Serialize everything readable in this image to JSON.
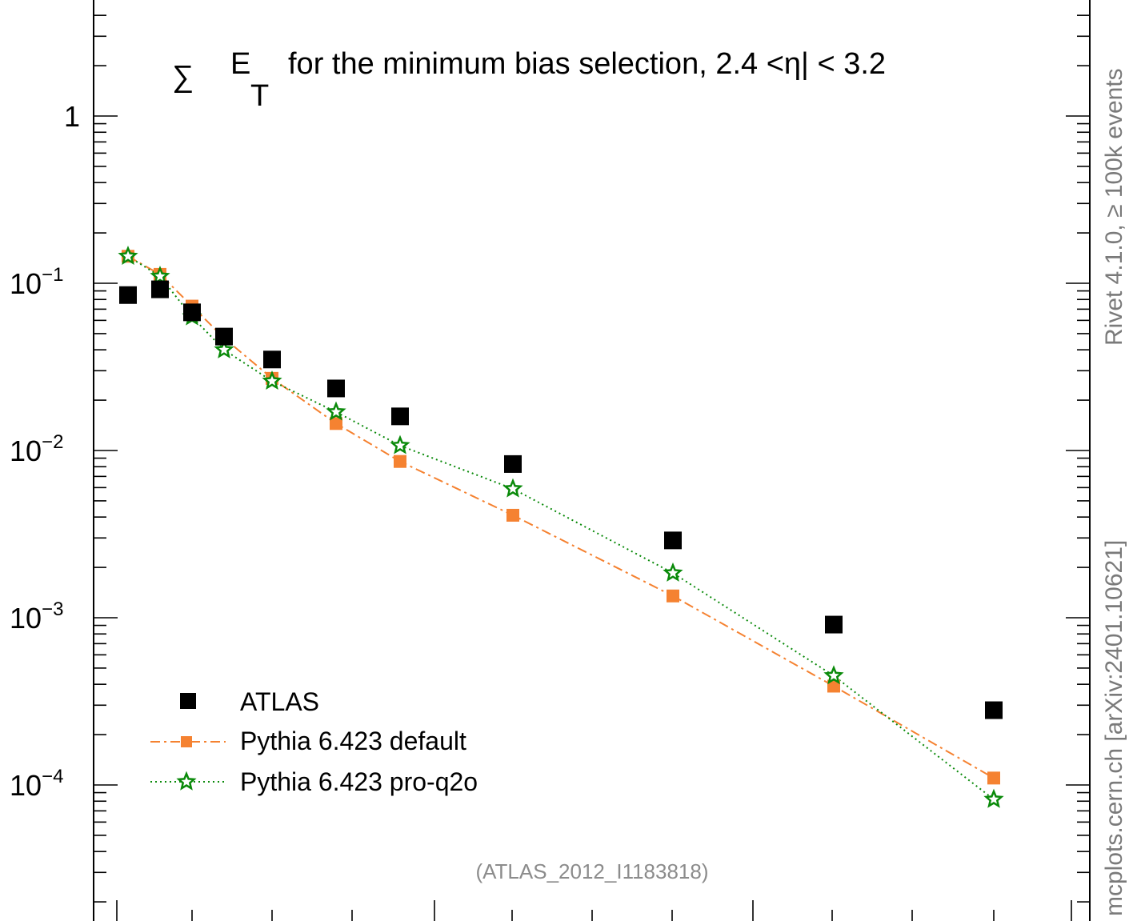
{
  "chart_data": {
    "type": "scatter",
    "title": "∑ E_T for the minimum bias selection, 2.4 <η| < 3.2",
    "title_parts": {
      "symbol": "∑",
      "quantity": "E",
      "subscript": "T",
      "text": "for the minimum bias selection, 2.4 <η| < 3.2"
    },
    "y_scale": "log",
    "ylim": [
      2e-05,
      4
    ],
    "y_ticks": [
      {
        "value": 1,
        "label": "1"
      },
      {
        "value": 0.1,
        "label": "10",
        "exp": "−1"
      },
      {
        "value": 0.01,
        "label": "10",
        "exp": "−2"
      },
      {
        "value": 0.001,
        "label": "10",
        "exp": "−3"
      },
      {
        "value": 0.0001,
        "label": "10",
        "exp": "−4"
      }
    ],
    "x": [
      1,
      2,
      3,
      4,
      5,
      6,
      7,
      8,
      9,
      10,
      11
    ],
    "series": [
      {
        "name": "ATLAS",
        "style": "square-marker",
        "color": "#000000",
        "values": [
          0.085,
          0.092,
          0.067,
          0.048,
          0.035,
          0.0235,
          0.016,
          0.0083,
          0.0029,
          0.00091,
          0.00028
        ]
      },
      {
        "name": "Pythia 6.423 default",
        "style": "dash-dot-square",
        "color": "#f58231",
        "values": [
          0.145,
          0.113,
          0.073,
          0.047,
          0.027,
          0.0145,
          0.0086,
          0.0041,
          0.00135,
          0.00039,
          0.00011
        ]
      },
      {
        "name": "Pythia 6.423 pro-q2o",
        "style": "dotted-star",
        "color": "#0a8a0a",
        "values": [
          0.145,
          0.11,
          0.063,
          0.04,
          0.026,
          0.017,
          0.0107,
          0.0059,
          0.00185,
          0.00045,
          8.2e-05
        ]
      }
    ],
    "annotation": "(ATLAS_2012_I1183818)",
    "side_label_top": "Rivet 4.1.0, ≥ 100k events",
    "side_label_bottom": "mcplots.cern.ch [arXiv:2401.10621]"
  },
  "colors": {
    "data": "#000000",
    "default": "#f58231",
    "proq2o": "#0a8a0a",
    "side_text": "#7a7a7a",
    "annotation": "#8c8c8c"
  }
}
